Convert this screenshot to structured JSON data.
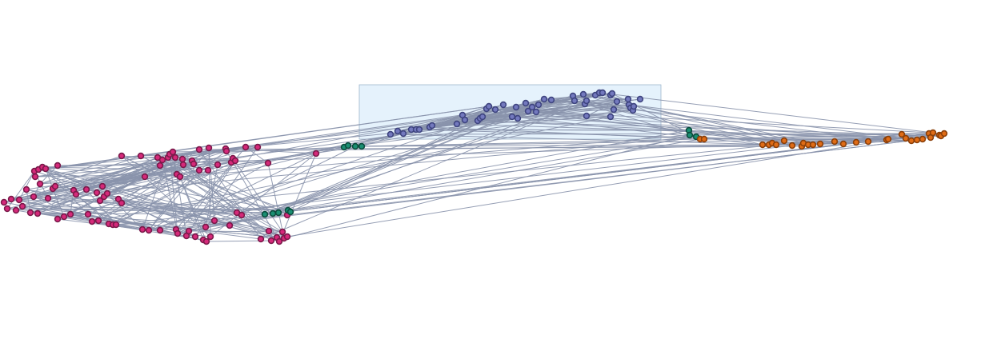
{
  "graph": {
    "colors": {
      "background": "#ffffff",
      "edge": "#8a93ac",
      "selection_fill": "#dcedfb",
      "selection_stroke": "#9fb7cc"
    },
    "groups": [
      {
        "name": "magenta-cluster",
        "color": "#d6297a",
        "stroke": "#7a1a4a"
      },
      {
        "name": "blue-cluster",
        "color": "#7379be",
        "stroke": "#3f4580"
      },
      {
        "name": "orange-cluster",
        "color": "#e06c16",
        "stroke": "#8a3f0a"
      },
      {
        "name": "teal-cluster",
        "color": "#1a8f72",
        "stroke": "#0c4c3d"
      }
    ],
    "selection": {
      "visible": true
    }
  }
}
